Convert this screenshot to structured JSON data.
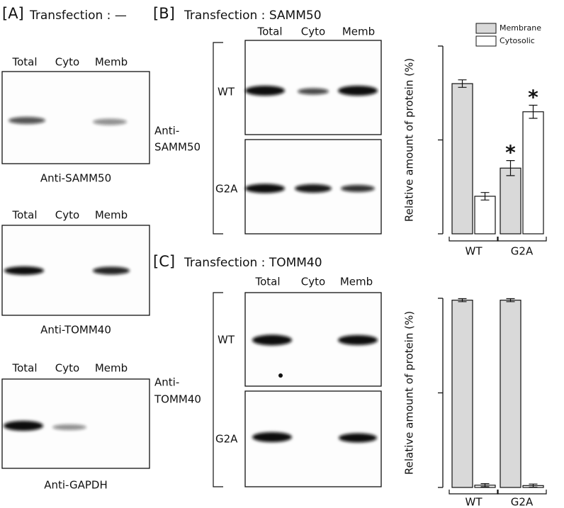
{
  "panel_a": {
    "label": "[A]",
    "title": "Transfection : —",
    "blots": [
      {
        "lanes": [
          "Total",
          "Cyto",
          "Memb"
        ],
        "antibody": "Anti-SAMM50"
      },
      {
        "lanes": [
          "Total",
          "Cyto",
          "Memb"
        ],
        "antibody": "Anti-TOMM40"
      },
      {
        "lanes": [
          "Total",
          "Cyto",
          "Memb"
        ],
        "antibody": "Anti-GAPDH"
      }
    ]
  },
  "panel_b": {
    "label": "[B]",
    "title": "Transfection : SAMM50",
    "lanes": [
      "Total",
      "Cyto",
      "Memb"
    ],
    "rows": [
      "WT",
      "G2A"
    ],
    "antibody": [
      "Anti-",
      "SAMM50"
    ]
  },
  "panel_c": {
    "label": "[C]",
    "title": "Transfection : TOMM40",
    "lanes": [
      "Total",
      "Cyto",
      "Memb"
    ],
    "rows": [
      "WT",
      "G2A"
    ],
    "antibody": [
      "Anti-",
      "TOMM40"
    ]
  },
  "chart_data": [
    {
      "type": "bar",
      "y_label": "Relative amount of protein (%)",
      "categories": [
        "WT",
        "G2A"
      ],
      "series": [
        {
          "name": "Membrane",
          "color": "#d9d9d9",
          "values": [
            80,
            35
          ],
          "errors": [
            2,
            4
          ],
          "marks": [
            null,
            "*"
          ]
        },
        {
          "name": "Cytosolic",
          "color": "#ffffff",
          "values": [
            20,
            65
          ],
          "errors": [
            2,
            3.5
          ],
          "marks": [
            null,
            "*"
          ]
        }
      ],
      "ylim": [
        0,
        100
      ],
      "yticks": [
        0,
        50,
        100
      ]
    },
    {
      "type": "bar",
      "y_label": "Relative amount of protein (%)",
      "categories": [
        "WT",
        "G2A"
      ],
      "series": [
        {
          "color": "#d9d9d9",
          "values": [
            99,
            99
          ],
          "errors": [
            0.8,
            0.8
          ]
        },
        {
          "color": "#ffffff",
          "values": [
            1.2,
            1
          ],
          "errors": [
            0.8,
            0.8
          ]
        }
      ],
      "ylim": [
        0,
        100
      ],
      "yticks": [
        0,
        50,
        100
      ]
    }
  ]
}
